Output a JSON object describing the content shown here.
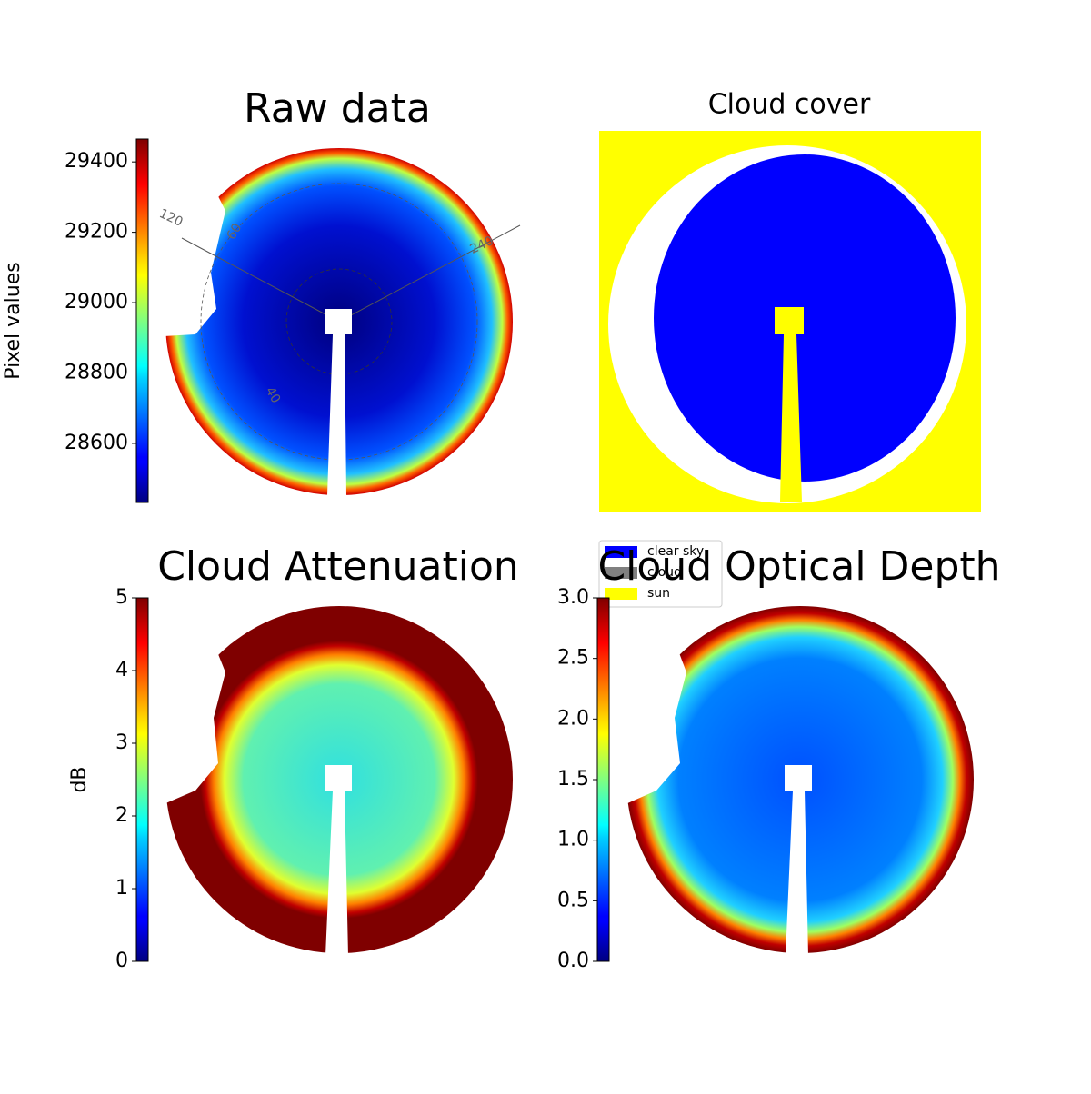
{
  "chart_data": [
    {
      "type": "image",
      "title": "Raw data",
      "colormap": "jet",
      "ylabel": "Pixel values",
      "ylim": [
        28432,
        29465
      ],
      "yticks": [
        28600,
        28800,
        29000,
        29200,
        29400
      ],
      "annotations": [
        "120",
        "60",
        "240",
        "40"
      ]
    },
    {
      "type": "image",
      "title": "Cloud cover",
      "series": [
        {
          "name": "clear sky",
          "color": "#0000ff"
        },
        {
          "name": "cloud",
          "color": "#808080"
        },
        {
          "name": "sun",
          "color": "#ffff00"
        }
      ],
      "legend": "lower-left"
    },
    {
      "type": "image",
      "title": "Cloud Attenuation",
      "colormap": "jet",
      "ylabel": "dB",
      "ylim": [
        0,
        5
      ],
      "yticks": [
        0,
        1,
        2,
        3,
        4,
        5
      ]
    },
    {
      "type": "image",
      "title": "Cloud Optical Depth",
      "colormap": "jet",
      "ylim": [
        0,
        3
      ],
      "yticks": [
        {
          "value": 0,
          "label": "0.0"
        },
        {
          "value": 0.5,
          "label": "0.5"
        },
        {
          "value": 1,
          "label": "1.0"
        },
        {
          "value": 1.5,
          "label": "1.5"
        },
        {
          "value": 2,
          "label": "2.0"
        },
        {
          "value": 2.5,
          "label": "2.5"
        },
        {
          "value": 3,
          "label": "3.0"
        }
      ]
    }
  ]
}
